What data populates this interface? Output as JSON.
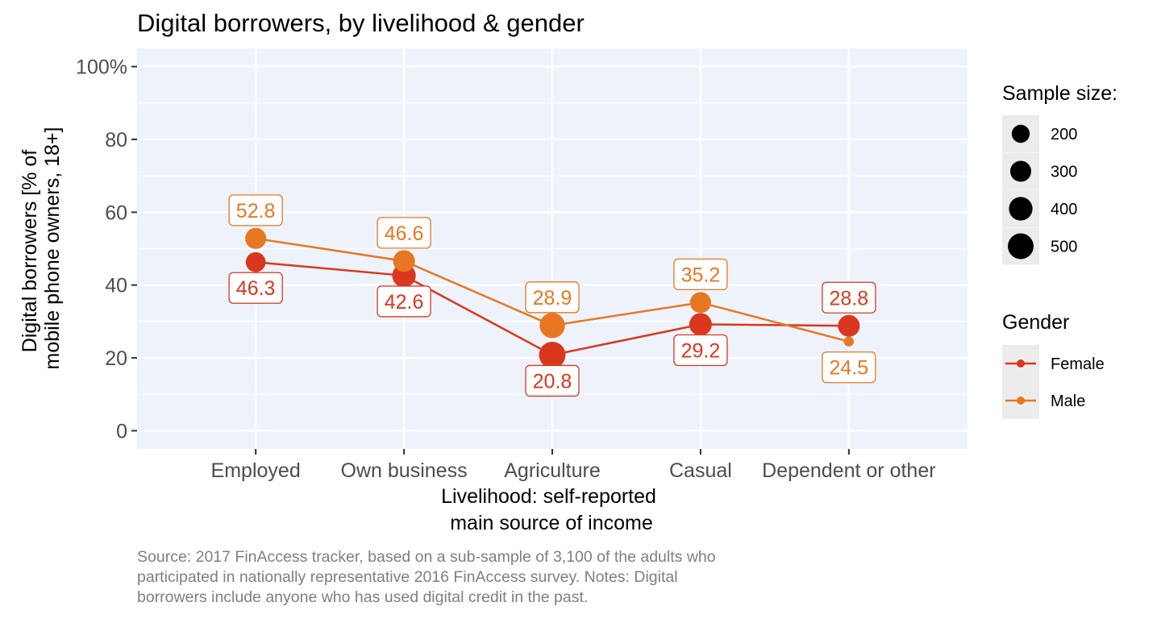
{
  "chart_data": {
    "type": "line",
    "title": "Digital borrowers, by livelihood & gender",
    "xlabel": [
      "Livelihood: self-reported",
      "main source of income"
    ],
    "ylabel": [
      "Digital borrowers [% of",
      "mobile phone owners, 18+]"
    ],
    "categories": [
      "Employed",
      "Own business",
      "Agriculture",
      "Casual",
      "Dependent or other"
    ],
    "ylim": [
      -5,
      105
    ],
    "yticks": [
      0,
      20,
      40,
      60,
      80,
      100
    ],
    "ytick_labels": [
      "0",
      "20",
      "40",
      "60",
      "80",
      "100%"
    ],
    "grid": true,
    "legend_position": "right",
    "series": [
      {
        "name": "Female",
        "color": "#d9381e",
        "values": [
          46.3,
          42.6,
          20.8,
          29.2,
          28.8
        ],
        "labels": [
          "46.3",
          "42.6",
          "20.8",
          "29.2",
          "28.8"
        ],
        "label_side": [
          "below",
          "below",
          "below",
          "below",
          "above"
        ],
        "sample_sizes": [
          260,
          400,
          540,
          360,
          330
        ]
      },
      {
        "name": "Male",
        "color": "#e87722",
        "values": [
          52.8,
          46.6,
          28.9,
          35.2,
          24.5
        ],
        "labels": [
          "52.8",
          "46.6",
          "28.9",
          "35.2",
          "24.5"
        ],
        "label_side": [
          "above",
          "above",
          "above",
          "above",
          "below"
        ],
        "sample_sizes": [
          300,
          330,
          480,
          300,
          30
        ]
      }
    ],
    "size_legend": {
      "title": "Sample size:",
      "entries": [
        {
          "label": "200",
          "value": 200
        },
        {
          "label": "300",
          "value": 300
        },
        {
          "label": "400",
          "value": 400
        },
        {
          "label": "500",
          "value": 500
        }
      ]
    },
    "color_legend": {
      "title": "Gender",
      "entries": [
        {
          "label": "Female",
          "color": "#d9381e"
        },
        {
          "label": "Male",
          "color": "#e87722"
        }
      ]
    },
    "caption": [
      "Source: 2017 FinAccess tracker, based on a sub-sample of 3,100 of the adults who",
      "participated in nationally representative 2016 FinAccess survey. Notes: Digital",
      "borrowers include anyone who has used digital credit in the past."
    ],
    "colors": {
      "panel": "#eef3fb",
      "grid": "#ffffff"
    }
  }
}
